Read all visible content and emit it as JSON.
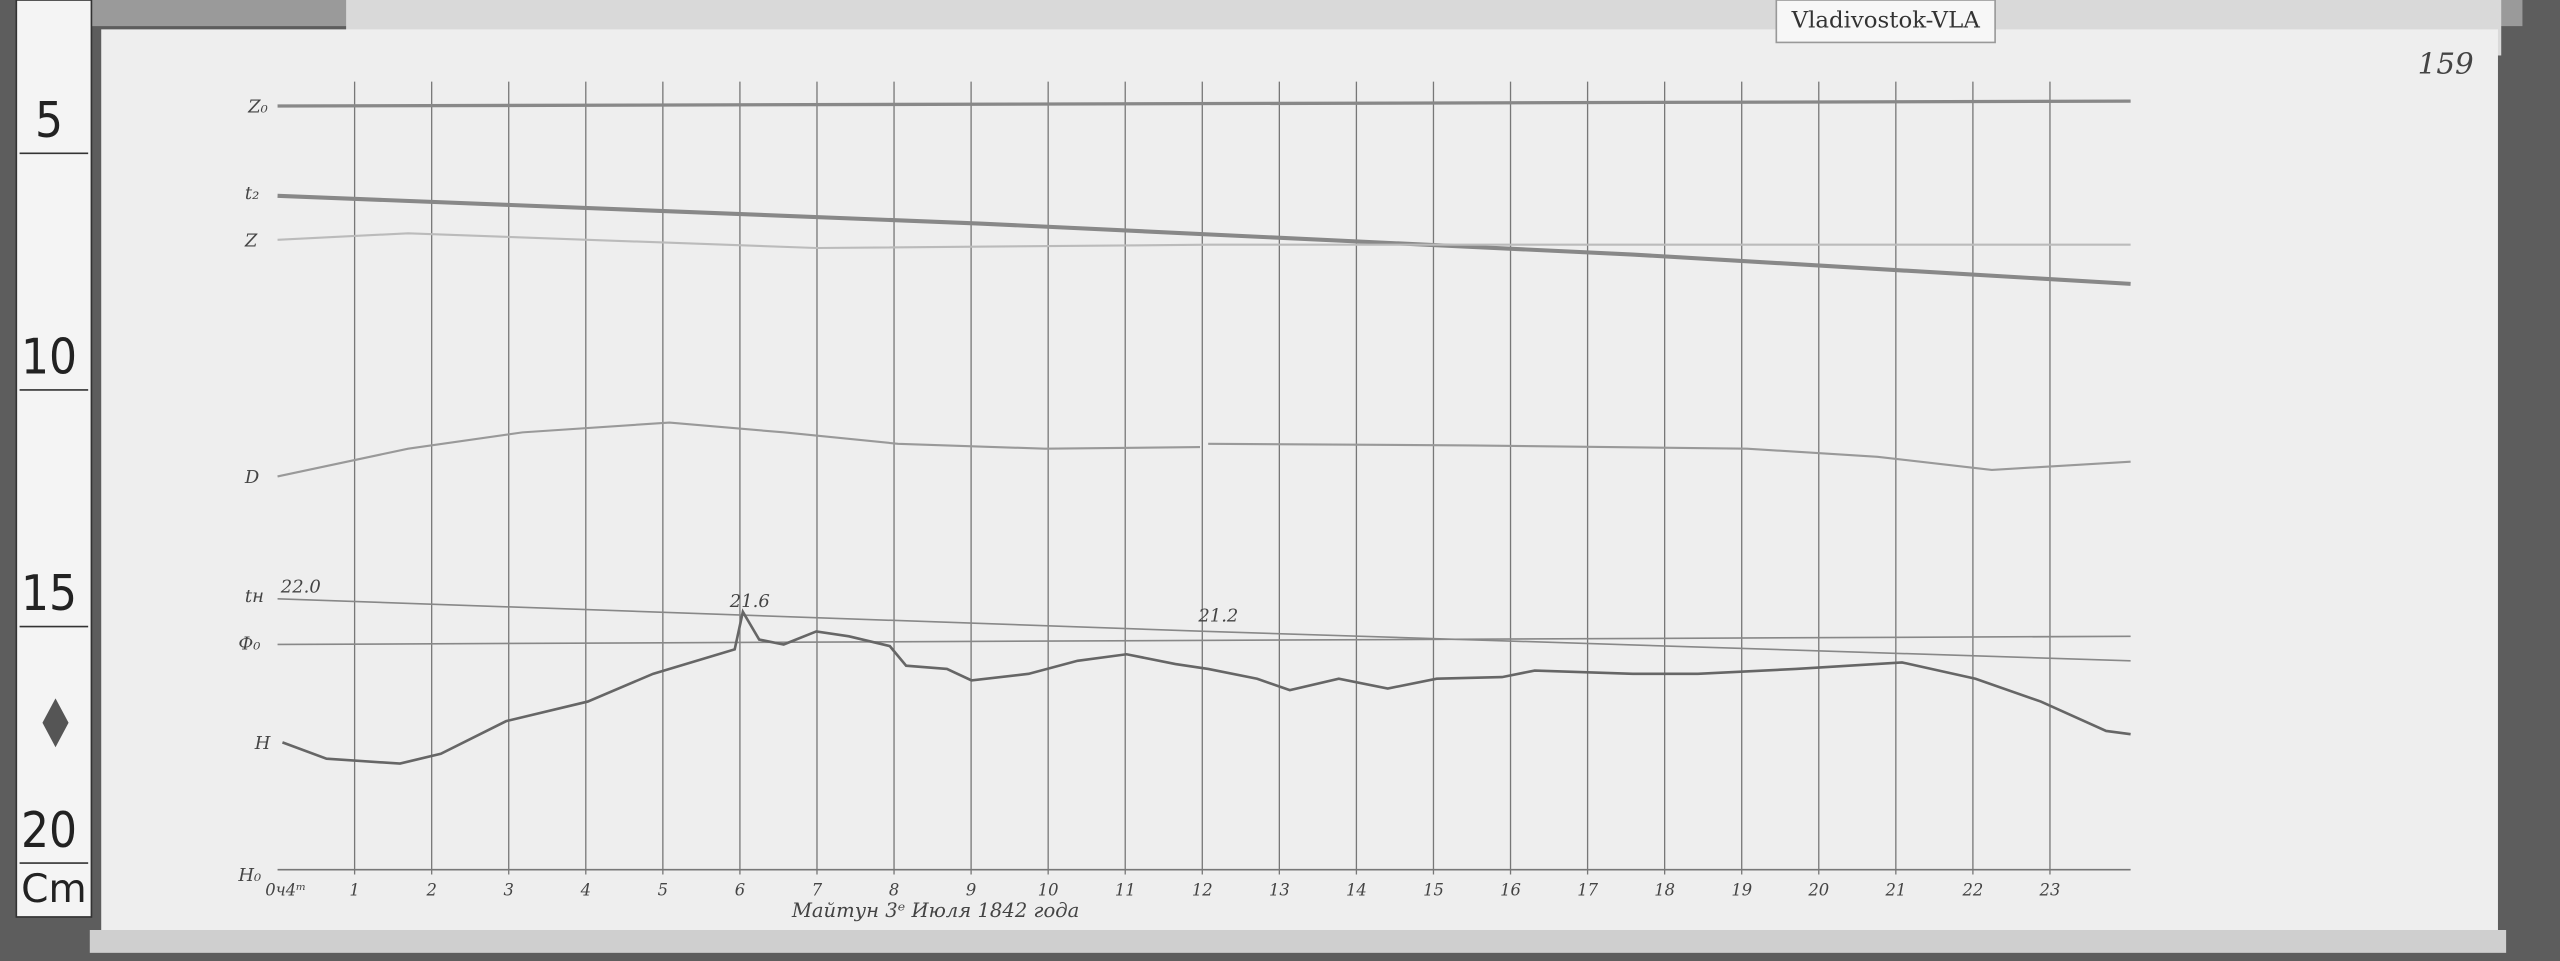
{
  "header": {
    "station": "Vladivostok-VLA",
    "sheet_number": "159"
  },
  "ruler": {
    "marks": [
      "5",
      "10",
      "15",
      "20"
    ],
    "unit": "Cm"
  },
  "traces": {
    "z0": "Z₀",
    "t2": "t₂",
    "z": "Z",
    "d": "D",
    "tn": "tн",
    "f0": "Ф₀",
    "h": "H",
    "h0": "H₀"
  },
  "annotations": {
    "start": "22.0",
    "midday": "21.6",
    "noon": "21.2"
  },
  "hours": [
    "0ч4ᵐ",
    "1",
    "2",
    "3",
    "4",
    "5",
    "6",
    "7",
    "8",
    "9",
    "10",
    "11",
    "12",
    "13",
    "14",
    "15",
    "16",
    "17",
    "18",
    "19",
    "20",
    "21",
    "22",
    "23"
  ],
  "caption": "Майтун 3ᵉ Июля 1842 года"
}
